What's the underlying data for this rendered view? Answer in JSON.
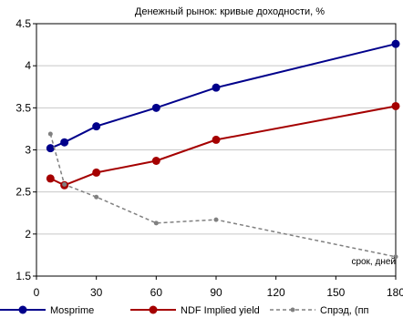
{
  "chart_data": {
    "type": "line",
    "title": "Денежный рынок: кривые доходности, %",
    "xlabel": "срок, дней",
    "ylabel": "",
    "xlim": [
      0,
      180
    ],
    "ylim": [
      1.5,
      4.5
    ],
    "xticks": [
      0,
      30,
      60,
      90,
      120,
      150,
      180
    ],
    "yticks": [
      1.5,
      2,
      2.5,
      3,
      3.5,
      4,
      4.5
    ],
    "xtick_labels": [
      "0",
      "30",
      "60",
      "90",
      "120",
      "150",
      "180"
    ],
    "ytick_labels": [
      "1.5",
      "2",
      "2.5",
      "3",
      "3.5",
      "4",
      "4.5"
    ],
    "grid": "horizontal",
    "legend_position": "bottom",
    "series": [
      {
        "name": "Mosprime",
        "color": "#00008b",
        "style": "solid",
        "x": [
          7,
          14,
          30,
          60,
          90,
          180
        ],
        "y": [
          3.02,
          3.09,
          3.28,
          3.5,
          3.74,
          4.26
        ]
      },
      {
        "name": "NDF Implied yield",
        "color": "#a50000",
        "style": "solid",
        "x": [
          7,
          14,
          30,
          60,
          90,
          180
        ],
        "y": [
          2.66,
          2.58,
          2.73,
          2.87,
          3.12,
          3.52
        ]
      },
      {
        "name": "Спрэд, (пп",
        "color": "#808080",
        "style": "dashed",
        "x": [
          7,
          14,
          30,
          60,
          90,
          180
        ],
        "y": [
          3.19,
          2.59,
          2.44,
          2.13,
          2.17,
          1.73
        ]
      }
    ]
  }
}
